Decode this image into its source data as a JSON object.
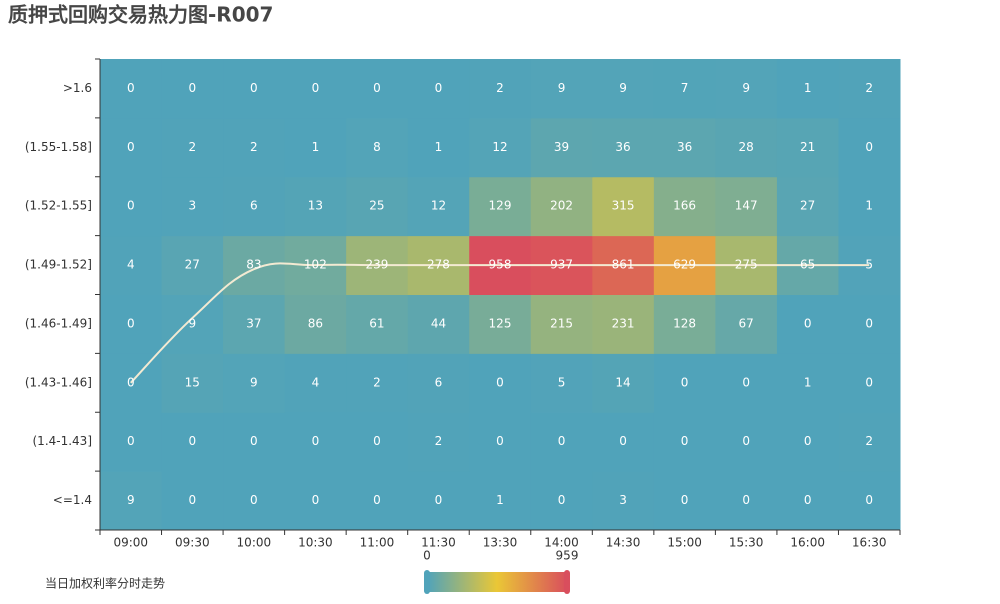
{
  "chart_data": {
    "type": "heatmap",
    "title": "质押式回购交易热力图-R007",
    "categories": [
      "09:00",
      "09:30",
      "10:00",
      "10:30",
      "11:00",
      "11:30",
      "13:30",
      "14:00",
      "14:30",
      "15:00",
      "15:30",
      "16:00",
      "16:30"
    ],
    "y_categories": [
      "<=1.4",
      "(1.4-1.43]",
      "(1.43-1.46]",
      "(1.46-1.49]",
      "(1.49-1.52]",
      "(1.52-1.55]",
      "(1.55-1.58]",
      ">1.6"
    ],
    "values": [
      [
        9,
        0,
        0,
        0,
        0,
        0,
        1,
        0,
        3,
        0,
        0,
        0,
        0
      ],
      [
        0,
        0,
        0,
        0,
        0,
        2,
        0,
        0,
        0,
        0,
        0,
        0,
        2
      ],
      [
        0,
        15,
        9,
        4,
        2,
        6,
        0,
        5,
        14,
        0,
        0,
        1,
        0
      ],
      [
        0,
        9,
        37,
        86,
        61,
        44,
        125,
        215,
        231,
        128,
        67,
        0,
        0
      ],
      [
        4,
        27,
        83,
        102,
        239,
        278,
        958,
        937,
        861,
        629,
        275,
        65,
        5
      ],
      [
        0,
        3,
        6,
        13,
        25,
        12,
        129,
        202,
        315,
        166,
        147,
        27,
        1
      ],
      [
        0,
        2,
        2,
        1,
        8,
        1,
        12,
        39,
        36,
        36,
        28,
        21,
        0
      ],
      [
        0,
        0,
        0,
        0,
        0,
        0,
        2,
        9,
        9,
        7,
        9,
        1,
        2
      ]
    ],
    "visual_map": {
      "min": 0,
      "max": 959,
      "colors": [
        "#50a3ba",
        "#eac736",
        "#d94e5d"
      ]
    },
    "line": {
      "name": "当日加权利率分时走势",
      "color": "#f3ead2",
      "values": [
        2,
        3.1,
        3.93,
        4,
        4,
        4,
        4,
        4,
        4,
        4,
        4,
        4,
        4
      ]
    }
  }
}
